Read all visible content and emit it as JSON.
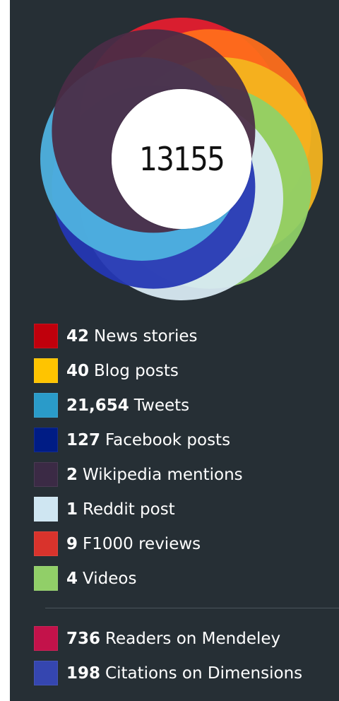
{
  "altmetric": {
    "score": "13155"
  },
  "donut": {
    "colors": [
      "#e41e2f",
      "#ff6f1c",
      "#f4b51f",
      "#8fd067",
      "#d9ebf3",
      "#2437b4",
      "#4fb3e0",
      "#4a2d46"
    ]
  },
  "legend": {
    "items": [
      {
        "count": "42",
        "label": "News stories",
        "color": "#c0000c",
        "icon": "news-color-swatch"
      },
      {
        "count": "40",
        "label": "Blog posts",
        "color": "#ffc400",
        "icon": "blog-color-swatch"
      },
      {
        "count": "21,654",
        "label": "Tweets",
        "color": "#2a9bc9",
        "icon": "twitter-color-swatch"
      },
      {
        "count": "127",
        "label": "Facebook posts",
        "color": "#001c85",
        "icon": "facebook-color-swatch"
      },
      {
        "count": "2",
        "label": "Wikipedia mentions",
        "color": "#3b2a45",
        "icon": "wikipedia-color-swatch"
      },
      {
        "count": "1",
        "label": "Reddit post",
        "color": "#cfe6f2",
        "icon": "reddit-color-swatch"
      },
      {
        "count": "9",
        "label": "F1000 reviews",
        "color": "#d9332c",
        "icon": "f1000-color-swatch"
      },
      {
        "count": "4",
        "label": "Videos",
        "color": "#91cf68",
        "icon": "video-color-swatch"
      }
    ],
    "secondary": [
      {
        "count": "736",
        "label": "Readers on Mendeley",
        "color": "#c3124a",
        "icon": "mendeley-color-swatch"
      },
      {
        "count": "198",
        "label": "Citations on Dimensions",
        "color": "#3546b0",
        "icon": "dimensions-color-swatch"
      }
    ]
  }
}
